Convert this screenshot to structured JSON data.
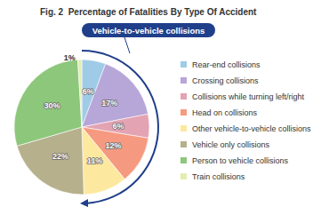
{
  "chart_data": {
    "type": "pie",
    "title": "Fig. 2  Percentage of Fatalities By Type Of Accident",
    "annotation": "Vehicle-to-vehicle collisions",
    "categories": [
      "Rear-end collisions",
      "Crossing collisions",
      "Collisions while turning left/right",
      "Head on collisions",
      "Other vehicle-to-vehicle collisions",
      "Vehicle only collisions",
      "Person to vehicle collisions",
      "Train collisions"
    ],
    "values": [
      6,
      17,
      6,
      12,
      11,
      22,
      30,
      1
    ],
    "value_labels": [
      "6%",
      "17%",
      "6%",
      "12%",
      "11%",
      "22%",
      "30%",
      "1%"
    ],
    "colors": [
      "#9fcbe6",
      "#b7a6d8",
      "#e3a3b3",
      "#f59a80",
      "#fde8a0",
      "#b6b08c",
      "#8dc77c",
      "#e4edb2"
    ],
    "data_labels": true,
    "legend": "right"
  }
}
